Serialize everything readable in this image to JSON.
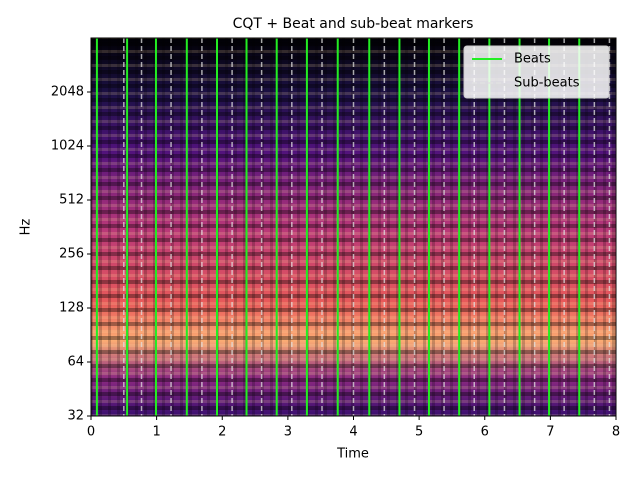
{
  "chart_data": {
    "type": "beat-markers",
    "title": "CQT + Beat and sub-beat markers",
    "x_label": "Time",
    "y_label": "Hz",
    "xlim": [
      0,
      8
    ],
    "xticks": [
      0,
      1,
      2,
      3,
      4,
      5,
      6,
      7,
      8
    ],
    "ylim": [
      32,
      4096
    ],
    "yticks": [
      32,
      64,
      128,
      256,
      512,
      1024,
      2048
    ],
    "y_scale": "log2",
    "legend": "upper right",
    "series": [
      {
        "name": "Beats",
        "color": "#22ee22",
        "dashed": false,
        "x": [
          0.09,
          0.55,
          0.99,
          1.46,
          1.92,
          2.37,
          2.83,
          3.29,
          3.76,
          4.24,
          4.7,
          5.15,
          5.61,
          6.07,
          6.53,
          6.98,
          7.44
        ]
      },
      {
        "name": "Sub-beats",
        "color": "#e0e0e0",
        "dashed": true,
        "x": [
          0.5,
          0.77,
          1.22,
          1.69,
          2.15,
          2.6,
          3.06,
          3.52,
          4.0,
          4.47,
          4.93,
          5.38,
          5.84,
          6.3,
          6.76,
          7.21,
          7.67,
          7.9
        ]
      }
    ]
  }
}
